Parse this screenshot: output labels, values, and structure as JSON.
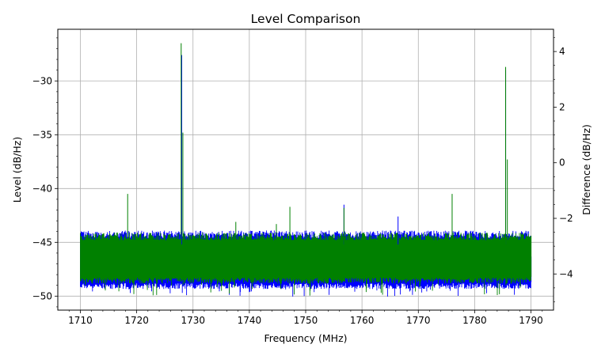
{
  "chart_data": {
    "type": "line",
    "title": "Level Comparison",
    "xlabel": "Frequency (MHz)",
    "ylabel": "Level (dB/Hz)",
    "y2label": "Difference (dB/Hz)",
    "xlim": [
      1706,
      1794
    ],
    "ylim": [
      -51.3,
      -25.2
    ],
    "y2lim": [
      -5.3,
      4.8
    ],
    "xticks": [
      1710,
      1720,
      1730,
      1740,
      1750,
      1760,
      1770,
      1780,
      1790
    ],
    "yticks": [
      -50,
      -45,
      -40,
      -35,
      -30
    ],
    "y2ticks": [
      -4,
      -2,
      0,
      2,
      4
    ],
    "grid": true,
    "noise_band": {
      "x_range": [
        1710,
        1790
      ],
      "blue": {
        "center": -46.6,
        "typical_low": -48.8,
        "typical_high": -44.6,
        "min": -50.2
      },
      "green": {
        "center": -46.6,
        "typical_low": -48.3,
        "typical_high": -44.8,
        "min": -50.2
      }
    },
    "series": [
      {
        "color": "#0000ff",
        "peaks": [
          {
            "x": 1728.0,
            "y": -27.6
          },
          {
            "x": 1756.8,
            "y": -41.5
          },
          {
            "x": 1766.4,
            "y": -42.6
          },
          {
            "x": 1785.5,
            "y": -29.0
          }
        ]
      },
      {
        "color": "#008000",
        "peaks": [
          {
            "x": 1718.4,
            "y": -40.5
          },
          {
            "x": 1727.9,
            "y": -26.5
          },
          {
            "x": 1728.2,
            "y": -34.8
          },
          {
            "x": 1737.6,
            "y": -43.1
          },
          {
            "x": 1744.8,
            "y": -43.3
          },
          {
            "x": 1747.2,
            "y": -41.7
          },
          {
            "x": 1756.8,
            "y": -41.8
          },
          {
            "x": 1776.0,
            "y": -40.5
          },
          {
            "x": 1785.5,
            "y": -28.7
          },
          {
            "x": 1785.8,
            "y": -37.3
          }
        ]
      }
    ]
  }
}
